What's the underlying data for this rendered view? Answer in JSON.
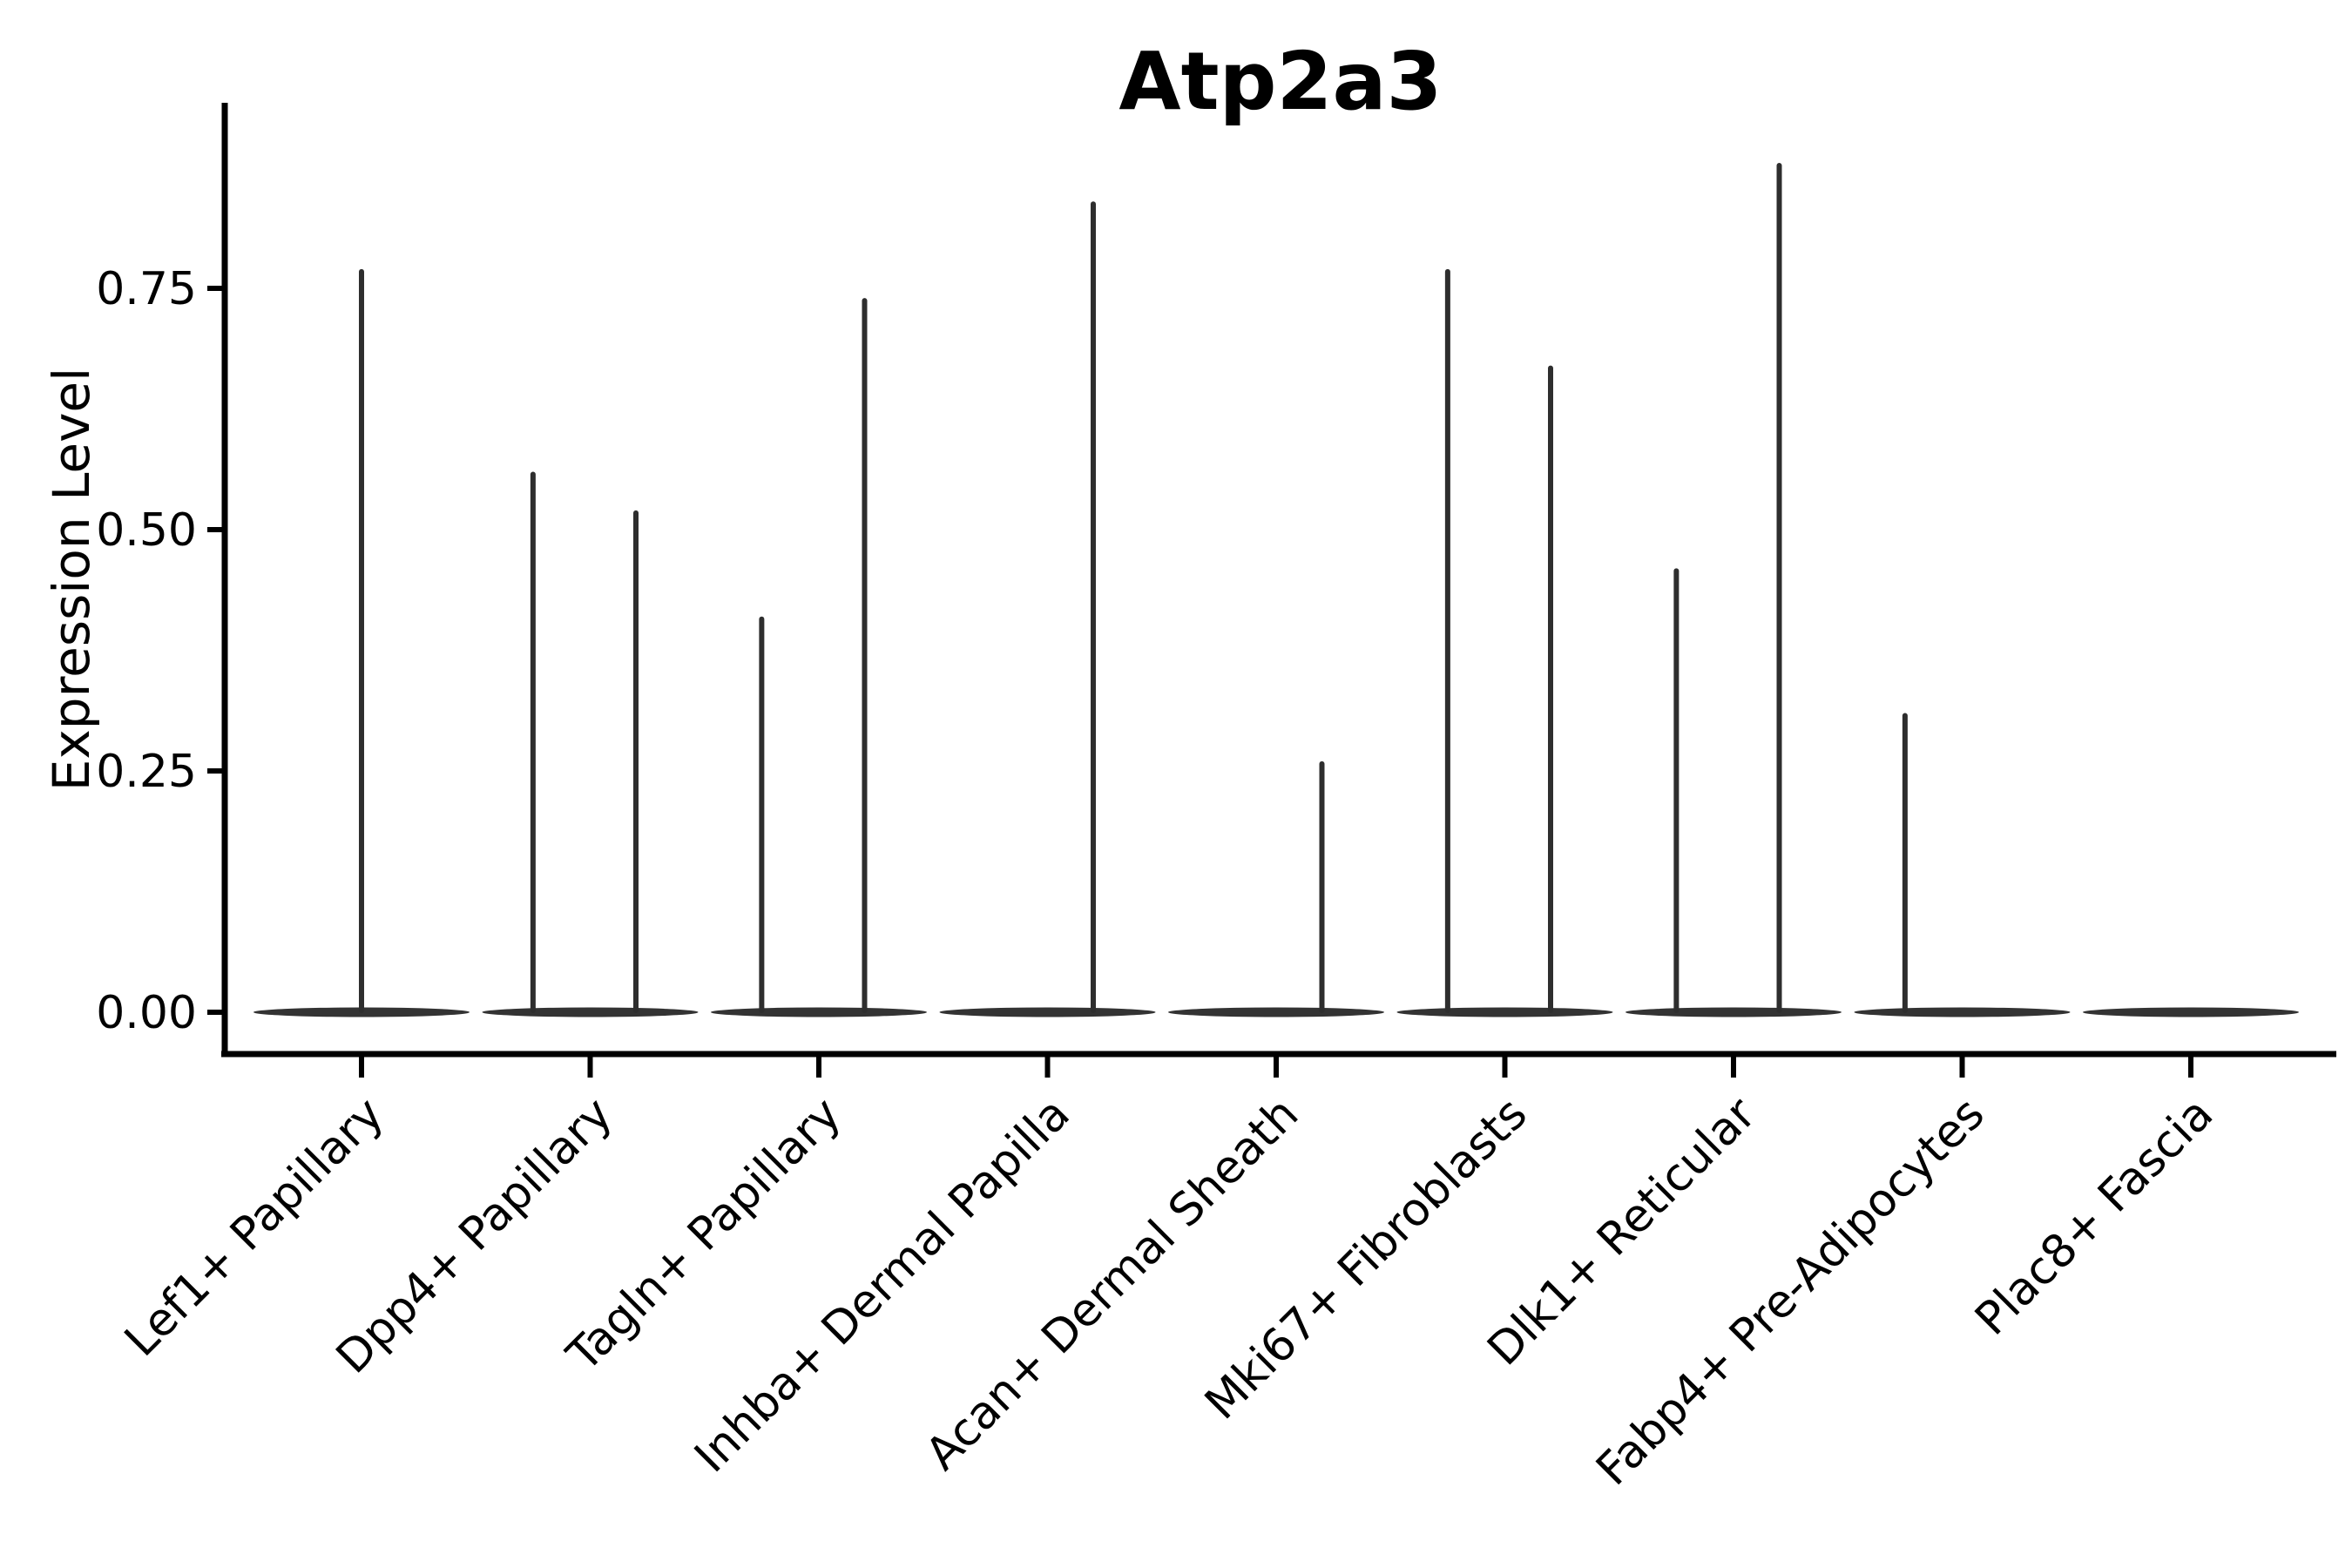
{
  "title": "Atp2a3",
  "y_axis_label": "Expression Level",
  "chart_data": {
    "type": "violin",
    "title": "Atp2a3",
    "xlabel": "",
    "ylabel": "Expression Level",
    "ylim": [
      -0.043,
      0.94
    ],
    "yticks": [
      0,
      0.25,
      0.5,
      0.75
    ],
    "yticklabels": [
      "0.00",
      "0.25",
      "0.50",
      "0.75"
    ],
    "grid": false,
    "legend": "none",
    "x_tick_rotation": 45,
    "categories": [
      "Lef1+ Papillary",
      "Dpp4+ Papillary",
      "Tagln+ Papillary",
      "Inhba+ Dermal Papilla",
      "Acan+ Dermal Sheath",
      "Mki67+ Fibroblasts",
      "Dlk1+ Reticular",
      "Fabp4+ Pre-Adipocytes",
      "Plac8+ Fascia"
    ],
    "series": [
      {
        "category": "Lef1+ Papillary",
        "violins": [
          {
            "position": "center",
            "max": 0.77
          }
        ]
      },
      {
        "category": "Dpp4+ Papillary",
        "violins": [
          {
            "position": "left",
            "max": 0.56
          },
          {
            "position": "right",
            "max": 0.52
          }
        ]
      },
      {
        "category": "Tagln+ Papillary",
        "violins": [
          {
            "position": "left",
            "max": 0.41
          },
          {
            "position": "right",
            "max": 0.74
          }
        ]
      },
      {
        "category": "Inhba+ Dermal Papilla",
        "violins": [
          {
            "position": "right",
            "max": 0.84
          }
        ]
      },
      {
        "category": "Acan+ Dermal Sheath",
        "violins": [
          {
            "position": "right",
            "max": 0.26
          }
        ]
      },
      {
        "category": "Mki67+ Fibroblasts",
        "violins": [
          {
            "position": "left",
            "max": 0.77
          },
          {
            "position": "right",
            "max": 0.67
          }
        ]
      },
      {
        "category": "Dlk1+ Reticular",
        "violins": [
          {
            "position": "left",
            "max": 0.46
          },
          {
            "position": "right",
            "max": 0.88
          }
        ]
      },
      {
        "category": "Fabp4+ Pre-Adipocytes",
        "violins": [
          {
            "position": "left",
            "max": 0.31
          }
        ]
      },
      {
        "category": "Plac8+ Fascia",
        "violins": []
      }
    ],
    "baseline_value": 0,
    "colors": {
      "violin_ink": "#2e2e2e",
      "violin_base_fill": "#333333",
      "axis": "#000000",
      "text": "#000000",
      "background": "#ffffff"
    }
  }
}
